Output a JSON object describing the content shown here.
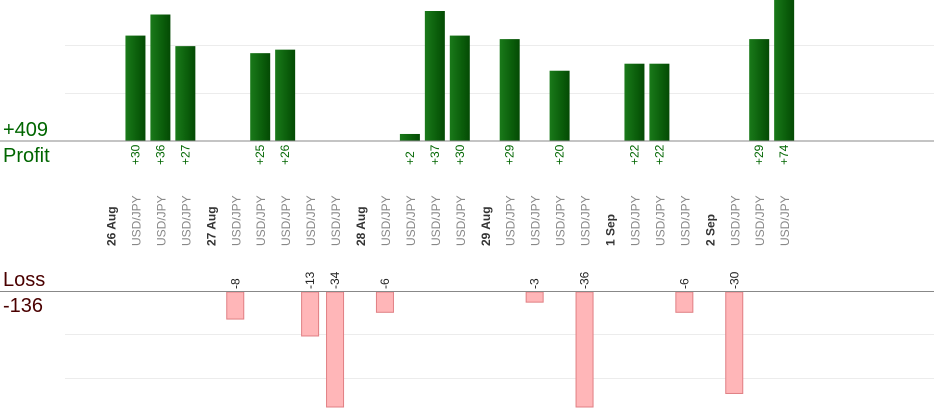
{
  "summary": {
    "profit_total": "+409",
    "profit_label": "Profit",
    "loss_label": "Loss",
    "loss_total": "-136"
  },
  "colors": {
    "profit_bar": "#0b5e0b",
    "profit_text": "#006600",
    "loss_bar": "#ffb6b8",
    "loss_bar_stroke": "#e07f83",
    "loss_text": "#4a0000",
    "date_text": "#333333",
    "pair_text": "#888888"
  },
  "chart_data": {
    "type": "bar",
    "title": "",
    "columns": [
      {
        "label": "26 Aug",
        "kind": "date"
      },
      {
        "label": "USD/JPY",
        "kind": "trade",
        "value": 30,
        "value_label": "+30"
      },
      {
        "label": "USD/JPY",
        "kind": "trade",
        "value": 36,
        "value_label": "+36"
      },
      {
        "label": "USD/JPY",
        "kind": "trade",
        "value": 27,
        "value_label": "+27"
      },
      {
        "label": "27 Aug",
        "kind": "date"
      },
      {
        "label": "USD/JPY",
        "kind": "trade",
        "value": -8,
        "value_label": "-8"
      },
      {
        "label": "USD/JPY",
        "kind": "trade",
        "value": 25,
        "value_label": "+25"
      },
      {
        "label": "USD/JPY",
        "kind": "trade",
        "value": 26,
        "value_label": "+26"
      },
      {
        "label": "USD/JPY",
        "kind": "trade",
        "value": -13,
        "value_label": "-13"
      },
      {
        "label": "USD/JPY",
        "kind": "trade",
        "value": -34,
        "value_label": "-34"
      },
      {
        "label": "28 Aug",
        "kind": "date"
      },
      {
        "label": "USD/JPY",
        "kind": "trade",
        "value": -6,
        "value_label": "-6"
      },
      {
        "label": "USD/JPY",
        "kind": "trade",
        "value": 2,
        "value_label": "+2"
      },
      {
        "label": "USD/JPY",
        "kind": "trade",
        "value": 37,
        "value_label": "+37"
      },
      {
        "label": "USD/JPY",
        "kind": "trade",
        "value": 30,
        "value_label": "+30"
      },
      {
        "label": "29 Aug",
        "kind": "date"
      },
      {
        "label": "USD/JPY",
        "kind": "trade",
        "value": 29,
        "value_label": "+29"
      },
      {
        "label": "USD/JPY",
        "kind": "trade",
        "value": -3,
        "value_label": "-3"
      },
      {
        "label": "USD/JPY",
        "kind": "trade",
        "value": 20,
        "value_label": "+20"
      },
      {
        "label": "USD/JPY",
        "kind": "trade",
        "value": -36,
        "value_label": "-36"
      },
      {
        "label": "1 Sep",
        "kind": "date"
      },
      {
        "label": "USD/JPY",
        "kind": "trade",
        "value": 22,
        "value_label": "+22"
      },
      {
        "label": "USD/JPY",
        "kind": "trade",
        "value": 22,
        "value_label": "+22"
      },
      {
        "label": "USD/JPY",
        "kind": "trade",
        "value": -6,
        "value_label": "-6"
      },
      {
        "label": "2 Sep",
        "kind": "date"
      },
      {
        "label": "USD/JPY",
        "kind": "trade",
        "value": -30,
        "value_label": "-30"
      },
      {
        "label": "USD/JPY",
        "kind": "trade",
        "value": 29,
        "value_label": "+29"
      },
      {
        "label": "USD/JPY",
        "kind": "trade",
        "value": 74,
        "value_label": "+74"
      }
    ],
    "profit_scale_max": 37,
    "loss_scale_max": 34,
    "grid": true,
    "legend": "none"
  }
}
